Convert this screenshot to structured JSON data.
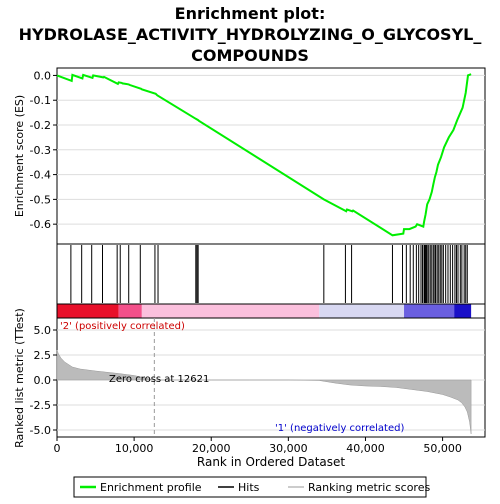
{
  "chart_data": {
    "type": "line",
    "title_line1": "Enrichment plot:",
    "title_line2": "HYDROLASE_ACTIVITY_HYDROLYZING_O_GLYCOSYL_",
    "title_line3": "COMPOUNDS",
    "top_panel": {
      "ylabel": "Enrichment score (ES)",
      "ylim": [
        -0.68,
        0.03
      ],
      "yticks": [
        "0.0",
        "-0.1",
        "-0.2",
        "-0.3",
        "-0.4",
        "-0.5",
        "-0.6"
      ],
      "ytick_values": [
        0.0,
        -0.1,
        -0.2,
        -0.3,
        -0.4,
        -0.5,
        -0.6
      ],
      "es_curve": {
        "x": [
          0,
          1900,
          2000,
          3300,
          3400,
          4600,
          4700,
          6000,
          6100,
          7900,
          8000,
          8400,
          8500,
          9300,
          9400,
          10900,
          11000,
          12800,
          13000,
          18000,
          18300,
          18400,
          34600,
          37500,
          37600,
          38300,
          38400,
          43500,
          44900,
          45000,
          45700,
          46500,
          46700,
          47500,
          47600,
          47800,
          48000,
          48300,
          48600,
          48800,
          49000,
          49200,
          49400,
          49800,
          50200,
          50800,
          51400,
          51900,
          52600,
          53000,
          53300,
          53700
        ],
        "y": [
          0.0,
          -0.022,
          0.002,
          -0.012,
          0.002,
          -0.01,
          0.0,
          -0.008,
          -0.006,
          -0.034,
          -0.028,
          -0.03,
          -0.032,
          -0.036,
          -0.038,
          -0.054,
          -0.056,
          -0.074,
          -0.08,
          -0.175,
          -0.18,
          -0.183,
          -0.5,
          -0.548,
          -0.541,
          -0.548,
          -0.545,
          -0.645,
          -0.638,
          -0.62,
          -0.62,
          -0.61,
          -0.6,
          -0.61,
          -0.59,
          -0.56,
          -0.52,
          -0.5,
          -0.47,
          -0.44,
          -0.41,
          -0.39,
          -0.36,
          -0.33,
          -0.29,
          -0.25,
          -0.22,
          -0.18,
          -0.13,
          -0.07,
          0.0,
          0.005
        ]
      },
      "hits": [
        1800,
        3200,
        4500,
        5900,
        7800,
        8200,
        9300,
        10800,
        12700,
        13100,
        18000,
        18150,
        18300,
        34600,
        37400,
        38200,
        43500,
        44800,
        45300,
        45800,
        46200,
        46600,
        46900,
        47200,
        47400,
        47600,
        47700,
        47800,
        47900,
        48000,
        48200,
        48400,
        48600,
        48800,
        49000,
        49100,
        49300,
        49500,
        49700,
        49900,
        50100,
        50400,
        50700,
        51000,
        51300,
        51600,
        51800,
        52000,
        52300,
        52500,
        52800,
        53000,
        53200
      ]
    },
    "heatmap_colors": [
      "#e8102a",
      "#f3508a",
      "#fbc0dd",
      "#d8d8f2",
      "#6a5fe0",
      "#1a10c8"
    ],
    "bottom_panel": {
      "ylabel": "Ranked list metric (TTest)",
      "xlabel": "Rank in Ordered Dataset",
      "ylim": [
        -5.7,
        6.2
      ],
      "yticks": [
        "5.0",
        "2.5",
        "0.0",
        "-2.5",
        "-5.0"
      ],
      "ytick_values": [
        5.0,
        2.5,
        0.0,
        -2.5,
        -5.0
      ],
      "xlim": [
        0,
        55500
      ],
      "xticks": [
        "0",
        "10,000",
        "20,000",
        "30,000",
        "40,000",
        "50,000"
      ],
      "xtick_values": [
        0,
        10000,
        20000,
        30000,
        40000,
        50000
      ],
      "metric_curve": {
        "x": [
          0,
          200,
          500,
          1000,
          2000,
          3000,
          5000,
          8000,
          10000,
          12621,
          15000,
          20000,
          25000,
          30000,
          34000,
          36000,
          38000,
          40000,
          42000,
          44000,
          46000,
          48000,
          50000,
          51000,
          52000,
          52500,
          52900,
          53200,
          53500,
          53700
        ],
        "y": [
          3.0,
          2.6,
          2.2,
          1.8,
          1.3,
          1.1,
          0.9,
          0.65,
          0.45,
          0.0,
          0.0,
          0.0,
          0.0,
          0.0,
          -0.05,
          -0.3,
          -0.5,
          -0.6,
          -0.65,
          -0.75,
          -0.95,
          -1.15,
          -1.45,
          -1.7,
          -2.0,
          -2.3,
          -2.7,
          -3.2,
          -4.2,
          -5.4
        ]
      },
      "zero_cross_label": "Zero cross at 12621",
      "zero_cross": 12621,
      "pos_label": "'2' (positively correlated)",
      "neg_label": "'1' (negatively correlated)"
    },
    "legend": [
      {
        "label": "Enrichment profile",
        "color": "#00ee00"
      },
      {
        "label": "Hits",
        "color": "#000000"
      },
      {
        "label": "Ranking metric scores",
        "color": "#bbbbbb"
      }
    ]
  }
}
